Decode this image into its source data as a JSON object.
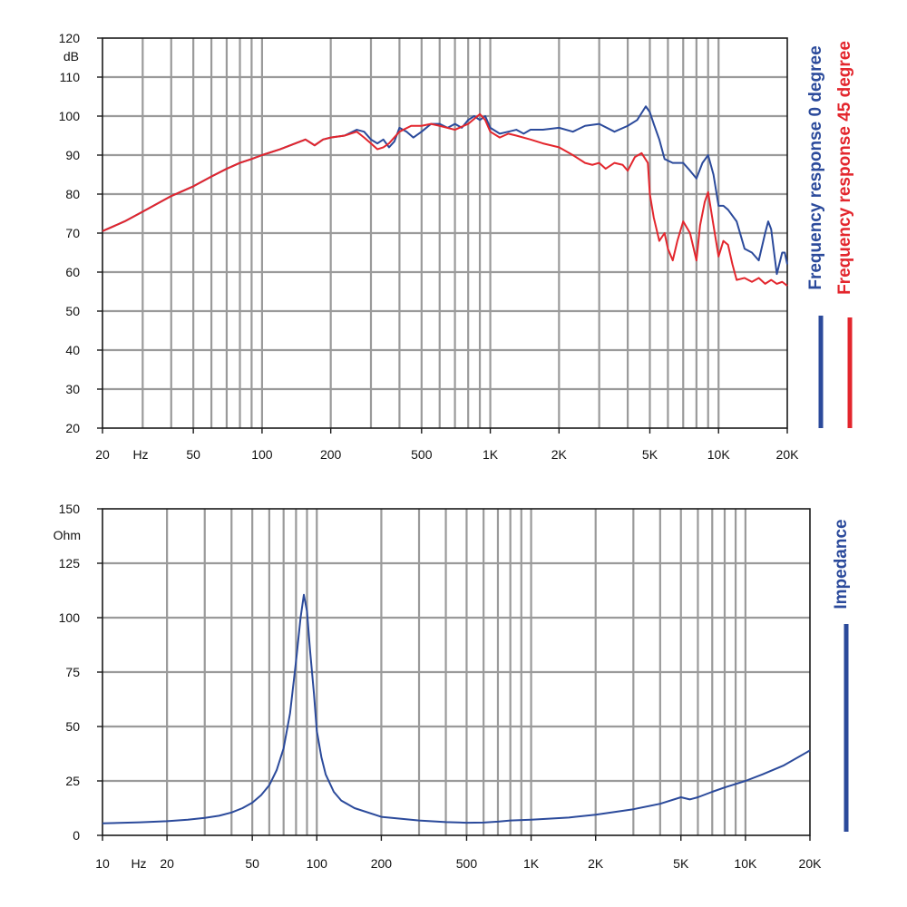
{
  "chart_data": [
    {
      "type": "line",
      "x_scale": "log",
      "xlim": [
        20,
        20000
      ],
      "ylim": [
        20,
        120
      ],
      "x_unit_label": "Hz",
      "y_unit_label": "dB",
      "x_ticks": [
        {
          "value": 20,
          "label": "20"
        },
        {
          "value": 50,
          "label": "50"
        },
        {
          "value": 100,
          "label": "100"
        },
        {
          "value": 200,
          "label": "200"
        },
        {
          "value": 500,
          "label": "500"
        },
        {
          "value": 1000,
          "label": "1K"
        },
        {
          "value": 2000,
          "label": "2K"
        },
        {
          "value": 5000,
          "label": "5K"
        },
        {
          "value": 10000,
          "label": "10K"
        },
        {
          "value": 20000,
          "label": "20K"
        }
      ],
      "y_ticks": [
        {
          "value": 20,
          "label": "20"
        },
        {
          "value": 30,
          "label": "30"
        },
        {
          "value": 40,
          "label": "40"
        },
        {
          "value": 50,
          "label": "50"
        },
        {
          "value": 60,
          "label": "60"
        },
        {
          "value": 70,
          "label": "70"
        },
        {
          "value": 80,
          "label": "80"
        },
        {
          "value": 90,
          "label": "90"
        },
        {
          "value": 100,
          "label": "100"
        },
        {
          "value": 110,
          "label": "110"
        },
        {
          "value": 120,
          "label": "120"
        }
      ],
      "grid": true,
      "legend_position": "right, vertical",
      "series": [
        {
          "name": "Frequency response 0 degree",
          "color": "#2b4a9b",
          "points": [
            [
              20,
              70.5
            ],
            [
              25,
              73
            ],
            [
              30,
              75.5
            ],
            [
              40,
              79.5
            ],
            [
              50,
              82
            ],
            [
              60,
              84.5
            ],
            [
              70,
              86.5
            ],
            [
              80,
              88
            ],
            [
              90,
              89
            ],
            [
              100,
              90
            ],
            [
              120,
              91.5
            ],
            [
              140,
              93
            ],
            [
              155,
              94
            ],
            [
              170,
              92.5
            ],
            [
              185,
              94
            ],
            [
              200,
              94.5
            ],
            [
              230,
              95
            ],
            [
              260,
              96.5
            ],
            [
              280,
              96
            ],
            [
              300,
              94
            ],
            [
              320,
              93
            ],
            [
              340,
              94
            ],
            [
              360,
              92
            ],
            [
              380,
              93.5
            ],
            [
              400,
              97
            ],
            [
              430,
              96
            ],
            [
              460,
              94.5
            ],
            [
              500,
              96
            ],
            [
              550,
              98
            ],
            [
              600,
              98
            ],
            [
              650,
              97
            ],
            [
              700,
              98
            ],
            [
              750,
              97
            ],
            [
              800,
              99
            ],
            [
              850,
              100
            ],
            [
              900,
              99
            ],
            [
              950,
              100
            ],
            [
              1000,
              97
            ],
            [
              1100,
              95.5
            ],
            [
              1200,
              96
            ],
            [
              1300,
              96.5
            ],
            [
              1400,
              95.5
            ],
            [
              1500,
              96.5
            ],
            [
              1700,
              96.5
            ],
            [
              2000,
              97
            ],
            [
              2300,
              96
            ],
            [
              2600,
              97.5
            ],
            [
              3000,
              98
            ],
            [
              3500,
              96
            ],
            [
              4000,
              97.5
            ],
            [
              4400,
              99
            ],
            [
              4800,
              102.5
            ],
            [
              5000,
              101
            ],
            [
              5200,
              98
            ],
            [
              5500,
              94
            ],
            [
              5800,
              89
            ],
            [
              6300,
              88
            ],
            [
              7000,
              88
            ],
            [
              7500,
              86
            ],
            [
              8000,
              84
            ],
            [
              8500,
              88
            ],
            [
              9000,
              90
            ],
            [
              9500,
              85
            ],
            [
              10000,
              77
            ],
            [
              10500,
              77
            ],
            [
              11000,
              76
            ],
            [
              12000,
              73
            ],
            [
              13000,
              66
            ],
            [
              14000,
              65
            ],
            [
              15000,
              63
            ],
            [
              16000,
              70
            ],
            [
              16500,
              73
            ],
            [
              17000,
              71
            ],
            [
              18000,
              59.5
            ],
            [
              19000,
              65
            ],
            [
              19500,
              65
            ],
            [
              20000,
              62
            ]
          ]
        },
        {
          "name": "Frequency response 45 degree",
          "color": "#e3262d",
          "points": [
            [
              20,
              70.5
            ],
            [
              25,
              73
            ],
            [
              30,
              75.5
            ],
            [
              40,
              79.5
            ],
            [
              50,
              82
            ],
            [
              60,
              84.5
            ],
            [
              70,
              86.5
            ],
            [
              80,
              88
            ],
            [
              90,
              89
            ],
            [
              100,
              90
            ],
            [
              120,
              91.5
            ],
            [
              140,
              93
            ],
            [
              155,
              94
            ],
            [
              170,
              92.5
            ],
            [
              185,
              94
            ],
            [
              200,
              94.5
            ],
            [
              230,
              95
            ],
            [
              260,
              96
            ],
            [
              280,
              94.5
            ],
            [
              300,
              93
            ],
            [
              320,
              91.5
            ],
            [
              340,
              92
            ],
            [
              360,
              93
            ],
            [
              400,
              96
            ],
            [
              450,
              97.5
            ],
            [
              500,
              97.5
            ],
            [
              550,
              98
            ],
            [
              600,
              97.5
            ],
            [
              700,
              96.5
            ],
            [
              800,
              98
            ],
            [
              900,
              100.5
            ],
            [
              950,
              99
            ],
            [
              1000,
              96
            ],
            [
              1100,
              94.5
            ],
            [
              1200,
              95.5
            ],
            [
              1300,
              95
            ],
            [
              1500,
              94
            ],
            [
              1700,
              93
            ],
            [
              2000,
              92
            ],
            [
              2300,
              90
            ],
            [
              2600,
              88
            ],
            [
              2800,
              87.5
            ],
            [
              3000,
              88
            ],
            [
              3200,
              86.5
            ],
            [
              3500,
              88
            ],
            [
              3800,
              87.5
            ],
            [
              4000,
              86
            ],
            [
              4300,
              89.5
            ],
            [
              4600,
              90.5
            ],
            [
              4900,
              88
            ],
            [
              5000,
              80
            ],
            [
              5200,
              74
            ],
            [
              5500,
              68
            ],
            [
              5800,
              70
            ],
            [
              6000,
              66
            ],
            [
              6300,
              63
            ],
            [
              6600,
              68
            ],
            [
              7000,
              73
            ],
            [
              7500,
              70
            ],
            [
              8000,
              63
            ],
            [
              8300,
              72
            ],
            [
              8700,
              78
            ],
            [
              9000,
              80.5
            ],
            [
              9500,
              72
            ],
            [
              10000,
              64
            ],
            [
              10500,
              68
            ],
            [
              11000,
              67
            ],
            [
              11500,
              62
            ],
            [
              12000,
              58
            ],
            [
              13000,
              58.5
            ],
            [
              14000,
              57.5
            ],
            [
              15000,
              58.5
            ],
            [
              16000,
              57
            ],
            [
              17000,
              58
            ],
            [
              18000,
              57
            ],
            [
              19000,
              57.5
            ],
            [
              20000,
              56.5
            ]
          ]
        }
      ]
    },
    {
      "type": "line",
      "x_scale": "log",
      "xlim": [
        10,
        20000
      ],
      "ylim": [
        0,
        150
      ],
      "x_unit_label": "Hz",
      "y_unit_label": "Ohm",
      "x_ticks": [
        {
          "value": 10,
          "label": "10"
        },
        {
          "value": 20,
          "label": "20"
        },
        {
          "value": 50,
          "label": "50"
        },
        {
          "value": 100,
          "label": "100"
        },
        {
          "value": 200,
          "label": "200"
        },
        {
          "value": 500,
          "label": "500"
        },
        {
          "value": 1000,
          "label": "1K"
        },
        {
          "value": 2000,
          "label": "2K"
        },
        {
          "value": 5000,
          "label": "5K"
        },
        {
          "value": 10000,
          "label": "10K"
        },
        {
          "value": 20000,
          "label": "20K"
        }
      ],
      "y_ticks": [
        {
          "value": 0,
          "label": "0"
        },
        {
          "value": 25,
          "label": "25"
        },
        {
          "value": 50,
          "label": "50"
        },
        {
          "value": 75,
          "label": "75"
        },
        {
          "value": 100,
          "label": "100"
        },
        {
          "value": 125,
          "label": "125"
        },
        {
          "value": 150,
          "label": "150"
        }
      ],
      "grid": true,
      "legend_position": "right, vertical",
      "series": [
        {
          "name": "Impedance",
          "color": "#2b4a9b",
          "points": [
            [
              10,
              5.5
            ],
            [
              15,
              6
            ],
            [
              20,
              6.5
            ],
            [
              25,
              7.2
            ],
            [
              30,
              8
            ],
            [
              35,
              9
            ],
            [
              40,
              10.5
            ],
            [
              45,
              12.5
            ],
            [
              50,
              15
            ],
            [
              55,
              18.5
            ],
            [
              60,
              23
            ],
            [
              65,
              30
            ],
            [
              70,
              40
            ],
            [
              75,
              56
            ],
            [
              80,
              80
            ],
            [
              84,
              100
            ],
            [
              87,
              110.5
            ],
            [
              90,
              103
            ],
            [
              93,
              85
            ],
            [
              97,
              65
            ],
            [
              100,
              48
            ],
            [
              105,
              36
            ],
            [
              110,
              28
            ],
            [
              120,
              20
            ],
            [
              130,
              16
            ],
            [
              150,
              12.5
            ],
            [
              200,
              8.5
            ],
            [
              300,
              6.8
            ],
            [
              400,
              6.1
            ],
            [
              500,
              5.8
            ],
            [
              600,
              5.9
            ],
            [
              700,
              6.3
            ],
            [
              800,
              6.8
            ],
            [
              1000,
              7.2
            ],
            [
              1500,
              8.2
            ],
            [
              2000,
              9.5
            ],
            [
              3000,
              12
            ],
            [
              4000,
              14.5
            ],
            [
              5000,
              17.5
            ],
            [
              5500,
              16.5
            ],
            [
              6000,
              17.5
            ],
            [
              7000,
              20
            ],
            [
              8000,
              22
            ],
            [
              10000,
              25
            ],
            [
              12000,
              28
            ],
            [
              15000,
              32
            ],
            [
              20000,
              39
            ]
          ]
        }
      ]
    }
  ]
}
